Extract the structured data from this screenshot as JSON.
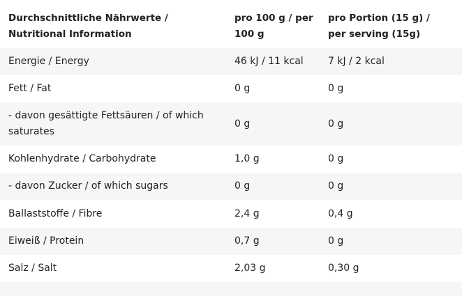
{
  "table": {
    "header": {
      "col1": "Durchschnittliche Nährwerte / Nutritional Information",
      "col2": "pro 100 g / per 100 g",
      "col3": "pro Portion (15 g) / per serving (15g)"
    },
    "rows": [
      {
        "label": "Energie / Energy",
        "per_100g": "46 kJ / 11 kcal",
        "per_portion": "7 kJ / 2 kcal"
      },
      {
        "label": "Fett / Fat",
        "per_100g": "0 g",
        "per_portion": "0 g"
      },
      {
        "label": "- davon gesättigte Fettsäuren / of which saturates",
        "per_100g": "0 g",
        "per_portion": "0 g"
      },
      {
        "label": "Kohlenhydrate / Carbohydrate",
        "per_100g": "1,0 g",
        "per_portion": "0 g"
      },
      {
        "label": "- davon Zucker / of which sugars",
        "per_100g": "0 g",
        "per_portion": "0 g"
      },
      {
        "label": "Ballaststoffe / Fibre",
        "per_100g": "2,4 g",
        "per_portion": "0,4 g"
      },
      {
        "label": "Eiweiß / Protein",
        "per_100g": "0,7 g",
        "per_portion": "0 g"
      },
      {
        "label": "Salz / Salt",
        "per_100g": "2,03 g",
        "per_portion": "0,30 g"
      }
    ]
  }
}
